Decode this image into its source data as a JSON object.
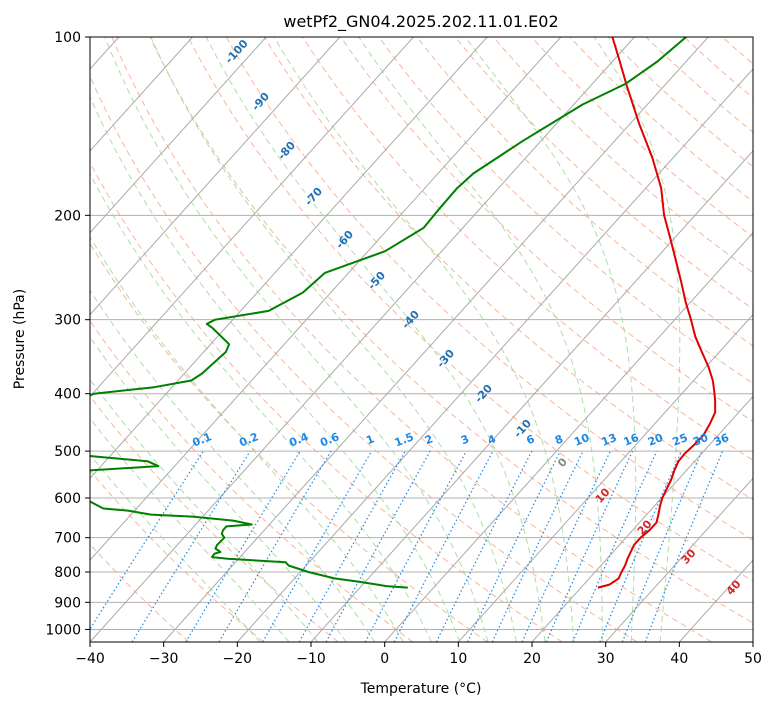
{
  "chart_data": {
    "type": "line",
    "title": "wetPf2_GN04.2025.202.11.01.E02",
    "xlabel": "Temperature (°C)",
    "ylabel": "Pressure (hPa)",
    "xlim": [
      -40,
      50
    ],
    "ylim": [
      1050,
      100
    ],
    "y_scale": "log",
    "grid": true,
    "x_ticks": [
      -40,
      -30,
      -20,
      -10,
      0,
      10,
      20,
      30,
      40,
      50
    ],
    "y_ticks": [
      100,
      200,
      300,
      400,
      500,
      600,
      700,
      800,
      900,
      1000
    ],
    "colors": {
      "temperature": "#e00000",
      "dewpoint": "#008000",
      "isotherm": "#aaaaaa",
      "dry_adiabat": "#f4a582",
      "moist_adiabat": "#a6d9a0",
      "mixing_ratio": "#1e88e5",
      "isotherm_label": "#2171b5",
      "height_label": "#d62728"
    },
    "isotherm_labels": [
      "-100",
      "-90",
      "-80",
      "-70",
      "-60",
      "-50",
      "-40",
      "-30",
      "-20",
      "-10",
      "0",
      "10",
      "20",
      "30",
      "40"
    ],
    "mixing_ratio_labels": [
      "0.1",
      "0.2",
      "0.4",
      "0.6",
      "1",
      "1.5",
      "2",
      "3",
      "4",
      "6",
      "8",
      "10",
      "13",
      "16",
      "20",
      "25",
      "30",
      "36"
    ],
    "mixing_ratio_values": [
      0.1,
      0.2,
      0.4,
      0.6,
      1,
      1.5,
      2,
      3,
      4,
      6,
      8,
      10,
      13,
      16,
      20,
      25,
      30,
      36
    ],
    "series": [
      {
        "id": "temperature",
        "points": [
          [
            850,
            22.3
          ],
          [
            840,
            23.5
          ],
          [
            820,
            24.0
          ],
          [
            800,
            23.6
          ],
          [
            780,
            23.3
          ],
          [
            760,
            22.8
          ],
          [
            740,
            22.4
          ],
          [
            720,
            22.0
          ],
          [
            700,
            22.0
          ],
          [
            680,
            22.3
          ],
          [
            660,
            22.3
          ],
          [
            640,
            21.6
          ],
          [
            620,
            20.8
          ],
          [
            600,
            20.1
          ],
          [
            580,
            19.6
          ],
          [
            560,
            19.1
          ],
          [
            540,
            18.4
          ],
          [
            520,
            17.8
          ],
          [
            505,
            17.7
          ],
          [
            490,
            17.9
          ],
          [
            470,
            18.0
          ],
          [
            450,
            17.5
          ],
          [
            430,
            16.8
          ],
          [
            410,
            15.3
          ],
          [
            395,
            14.0
          ],
          [
            380,
            12.6
          ],
          [
            360,
            10.3
          ],
          [
            340,
            7.6
          ],
          [
            320,
            4.8
          ],
          [
            300,
            2.2
          ],
          [
            280,
            -0.7
          ],
          [
            260,
            -3.6
          ],
          [
            240,
            -6.8
          ],
          [
            220,
            -10.3
          ],
          [
            200,
            -14.2
          ],
          [
            180,
            -17.9
          ],
          [
            160,
            -22.8
          ],
          [
            140,
            -28.8
          ],
          [
            120,
            -35.4
          ],
          [
            110,
            -39.0
          ],
          [
            100,
            -43.0
          ]
        ]
      },
      {
        "id": "dewpoint",
        "points": [
          [
            850,
            -3.5
          ],
          [
            845,
            -6.6
          ],
          [
            840,
            -8.0
          ],
          [
            830,
            -11.1
          ],
          [
            820,
            -14.6
          ],
          [
            800,
            -18.9
          ],
          [
            780,
            -22.4
          ],
          [
            770,
            -23.2
          ],
          [
            760,
            -31.5
          ],
          [
            755,
            -33.8
          ],
          [
            745,
            -33.9
          ],
          [
            740,
            -33.3
          ],
          [
            730,
            -34.4
          ],
          [
            720,
            -34.6
          ],
          [
            700,
            -34.5
          ],
          [
            690,
            -35.3
          ],
          [
            680,
            -35.6
          ],
          [
            670,
            -35.6
          ],
          [
            665,
            -32.4
          ],
          [
            655,
            -35.4
          ],
          [
            645,
            -41.4
          ],
          [
            640,
            -47.3
          ],
          [
            630,
            -50.9
          ],
          [
            625,
            -54.5
          ],
          [
            605,
            -57.7
          ],
          [
            580,
            -64.4
          ],
          [
            560,
            -66.0
          ],
          [
            540,
            -62.0
          ],
          [
            530,
            -52.2
          ],
          [
            520,
            -54.3
          ],
          [
            510,
            -62.4
          ],
          [
            500,
            -70.1
          ],
          [
            450,
            -75.5
          ],
          [
            400,
            -69.8
          ],
          [
            390,
            -62.4
          ],
          [
            380,
            -58.2
          ],
          [
            370,
            -57.6
          ],
          [
            340,
            -57.0
          ],
          [
            330,
            -57.5
          ],
          [
            310,
            -61.7
          ],
          [
            305,
            -63.0
          ],
          [
            300,
            -62.4
          ],
          [
            290,
            -56.2
          ],
          [
            270,
            -53.8
          ],
          [
            250,
            -53.2
          ],
          [
            230,
            -47.7
          ],
          [
            210,
            -45.3
          ],
          [
            195,
            -45.5
          ],
          [
            180,
            -45.6
          ],
          [
            170,
            -45.2
          ],
          [
            150,
            -42.5
          ],
          [
            130,
            -38.8
          ],
          [
            120,
            -35.5
          ],
          [
            110,
            -33.9
          ],
          [
            100,
            -33.0
          ]
        ]
      }
    ]
  }
}
